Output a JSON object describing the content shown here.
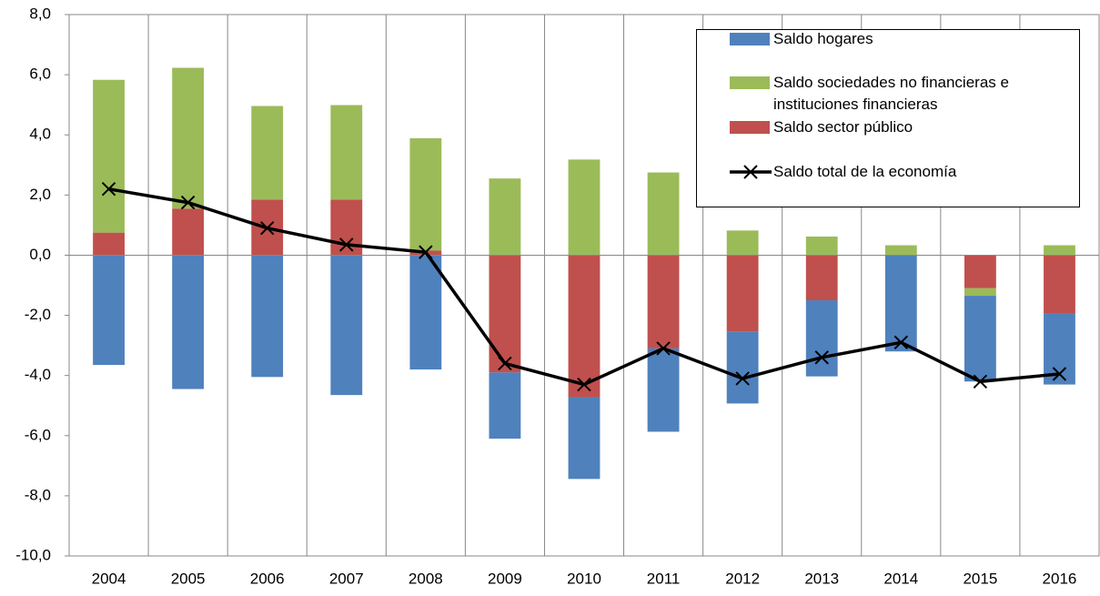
{
  "chart_data": {
    "type": "stacked_bar_line",
    "categories": [
      "2004",
      "2005",
      "2006",
      "2007",
      "2008",
      "2009",
      "2010",
      "2011",
      "2012",
      "2013",
      "2014",
      "2015",
      "2016"
    ],
    "series": [
      {
        "name": "Saldo hogares",
        "color": "#4f81bd",
        "values": [
          -3.65,
          -4.45,
          -4.05,
          -4.65,
          -3.8,
          -2.2,
          -2.72,
          -2.77,
          -2.38,
          -2.53,
          -3.2,
          -2.85,
          -2.35
        ]
      },
      {
        "name": "Saldo sociedades no financieras e instituciones financieras",
        "color": "#9bbb59",
        "values": [
          5.08,
          4.68,
          3.11,
          3.14,
          3.74,
          2.55,
          3.18,
          2.75,
          0.82,
          0.62,
          0.33,
          -0.25,
          0.33
        ]
      },
      {
        "name": "Saldo sector público",
        "color": "#c0504d",
        "values": [
          0.75,
          1.55,
          1.85,
          1.85,
          0.15,
          -3.9,
          -4.72,
          -3.1,
          -2.55,
          -1.5,
          0,
          -1.1,
          -1.95
        ]
      },
      {
        "name": "Saldo total de la economía",
        "color": "#000000",
        "type": "line",
        "values": [
          2.2,
          1.75,
          0.9,
          0.35,
          0.1,
          -3.6,
          -4.3,
          -3.1,
          -4.1,
          -3.4,
          -2.9,
          -4.2,
          -3.95
        ]
      }
    ],
    "ylim": [
      -10,
      8
    ],
    "yticks": [
      {
        "value": -10,
        "label": "-10,0"
      },
      {
        "value": -8,
        "label": "-8,0"
      },
      {
        "value": -6,
        "label": "-6,0"
      },
      {
        "value": -4,
        "label": "-4,0"
      },
      {
        "value": -2,
        "label": "-2,0"
      },
      {
        "value": 0,
        "label": "0,0"
      },
      {
        "value": 2,
        "label": "2,0"
      },
      {
        "value": 4,
        "label": "4,0"
      },
      {
        "value": 6,
        "label": "6,0"
      },
      {
        "value": 8,
        "label": "8,0"
      }
    ],
    "legend": "top-right"
  }
}
